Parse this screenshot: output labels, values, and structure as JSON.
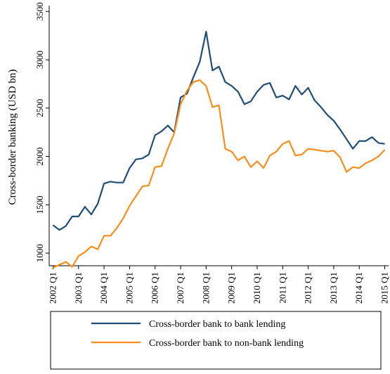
{
  "chart_data": {
    "type": "line",
    "title": "",
    "xlabel": "",
    "ylabel": "Cross-border banking (USD bn)",
    "x_tick_labels": [
      "2002 Q1",
      "2003 Q1",
      "2004 Q1",
      "2005 Q1",
      "2006 Q1",
      "2007 Q1",
      "2008 Q1",
      "2009 Q1",
      "2010 Q1",
      "2011 Q1",
      "2012 Q1",
      "2013 Q1",
      "2014 Q1",
      "2015 Q1"
    ],
    "y_ticks": [
      1000,
      1500,
      2000,
      2500,
      3000,
      3500
    ],
    "ylim": [
      870,
      3560
    ],
    "xlim": [
      2001.85,
      2015.15
    ],
    "grid": false,
    "legend_position": "bottom",
    "colors": {
      "bank_to_bank": "#1f4e79",
      "bank_to_nonbank": "#ff8c1a"
    },
    "series": [
      {
        "name": "Cross-border bank to bank lending",
        "color": "#1f4e79",
        "x": [
          2002.0,
          2002.25,
          2002.5,
          2002.75,
          2003.0,
          2003.25,
          2003.5,
          2003.75,
          2004.0,
          2004.25,
          2004.5,
          2004.75,
          2005.0,
          2005.25,
          2005.5,
          2005.75,
          2006.0,
          2006.25,
          2006.5,
          2006.75,
          2007.0,
          2007.25,
          2007.5,
          2007.75,
          2008.0,
          2008.25,
          2008.5,
          2008.75,
          2009.0,
          2009.25,
          2009.5,
          2009.75,
          2010.0,
          2010.25,
          2010.5,
          2010.75,
          2011.0,
          2011.25,
          2011.5,
          2011.75,
          2012.0,
          2012.25,
          2012.5,
          2012.75,
          2013.0,
          2013.25,
          2013.5,
          2013.75,
          2014.0,
          2014.25,
          2014.5,
          2014.75,
          2015.0
        ],
        "values": [
          1290,
          1240,
          1280,
          1380,
          1380,
          1480,
          1400,
          1510,
          1720,
          1740,
          1730,
          1730,
          1880,
          1970,
          1980,
          2020,
          2220,
          2260,
          2320,
          2250,
          2610,
          2650,
          2820,
          2980,
          3290,
          2890,
          2930,
          2770,
          2730,
          2670,
          2540,
          2570,
          2670,
          2740,
          2760,
          2610,
          2630,
          2590,
          2730,
          2640,
          2710,
          2580,
          2510,
          2430,
          2370,
          2280,
          2180,
          2080,
          2160,
          2160,
          2200,
          2140,
          2130
        ]
      },
      {
        "name": "Cross-border bank to non-bank lending",
        "color": "#ff8c1a",
        "x": [
          2002.0,
          2002.25,
          2002.5,
          2002.75,
          2003.0,
          2003.25,
          2003.5,
          2003.75,
          2004.0,
          2004.25,
          2004.5,
          2004.75,
          2005.0,
          2005.25,
          2005.5,
          2005.75,
          2006.0,
          2006.25,
          2006.5,
          2006.75,
          2007.0,
          2007.25,
          2007.5,
          2007.75,
          2008.0,
          2008.25,
          2008.5,
          2008.75,
          2009.0,
          2009.25,
          2009.5,
          2009.75,
          2010.0,
          2010.25,
          2010.5,
          2010.75,
          2011.0,
          2011.25,
          2011.5,
          2011.75,
          2012.0,
          2012.25,
          2012.5,
          2012.75,
          2013.0,
          2013.25,
          2013.5,
          2013.75,
          2014.0,
          2014.25,
          2014.5,
          2014.75,
          2015.0
        ],
        "values": [
          850,
          880,
          910,
          860,
          970,
          1010,
          1070,
          1040,
          1180,
          1180,
          1260,
          1360,
          1490,
          1590,
          1690,
          1700,
          1890,
          1900,
          2080,
          2240,
          2540,
          2680,
          2770,
          2790,
          2730,
          2510,
          2530,
          2080,
          2050,
          1960,
          2000,
          1890,
          1950,
          1880,
          2010,
          2050,
          2130,
          2160,
          2010,
          2020,
          2080,
          2070,
          2060,
          2050,
          2060,
          1990,
          1840,
          1890,
          1880,
          1930,
          1960,
          2000,
          2070
        ]
      }
    ]
  }
}
